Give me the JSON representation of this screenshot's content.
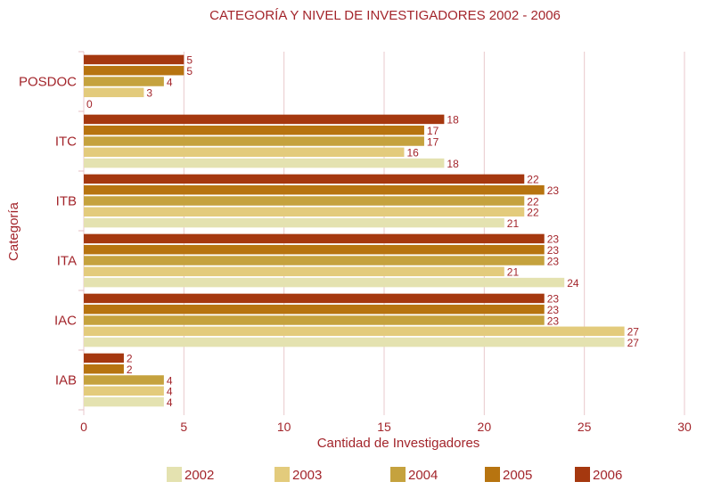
{
  "chart_data": {
    "type": "bar",
    "orientation": "horizontal",
    "title": "CATEGORÍA Y NIVEL DE INVESTIGADORES 2002 - 2006",
    "xlabel": "Cantidad de Investigadores",
    "ylabel": "Categoría",
    "xlim": [
      0,
      30
    ],
    "xticks": [
      "0",
      "5",
      "10",
      "15",
      "20",
      "25",
      "30"
    ],
    "grid": true,
    "legend_position": "bottom",
    "categories": [
      "POSDOC",
      "ITC",
      "ITB",
      "ITA",
      "IAC",
      "IAB"
    ],
    "series": [
      {
        "name": "2002",
        "color": "#e4e2b0",
        "values": [
          0,
          18,
          21,
          24,
          27,
          4
        ]
      },
      {
        "name": "2003",
        "color": "#e3cb7c",
        "values": [
          3,
          16,
          22,
          21,
          27,
          4
        ]
      },
      {
        "name": "2004",
        "color": "#c5a23e",
        "values": [
          4,
          17,
          22,
          23,
          23,
          4
        ]
      },
      {
        "name": "2005",
        "color": "#b77410",
        "values": [
          5,
          17,
          23,
          23,
          23,
          2
        ]
      },
      {
        "name": "2006",
        "color": "#a5380f",
        "values": [
          5,
          18,
          22,
          23,
          23,
          2
        ]
      }
    ]
  }
}
